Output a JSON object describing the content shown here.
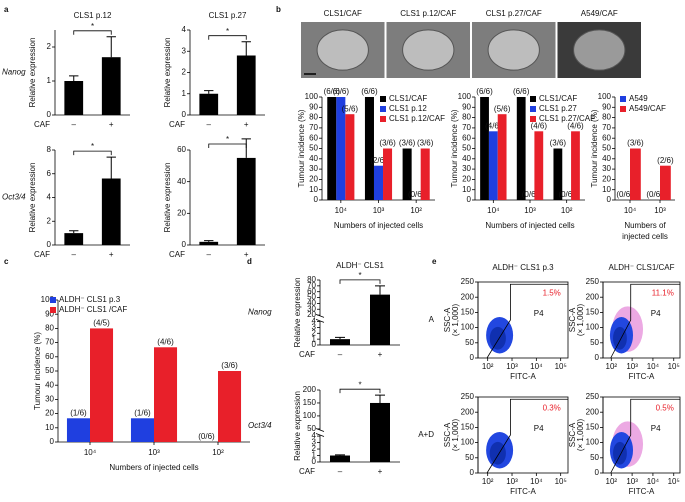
{
  "chart_data": [
    {
      "type": "bar",
      "panel": "a",
      "title": "CLS1 p.12",
      "row_label": "Nanog",
      "ylabel": "Relative expression",
      "x_prefix": "CAF",
      "categories": [
        "–",
        "+"
      ],
      "values": [
        1.0,
        1.7
      ],
      "errors": [
        0.15,
        0.6
      ],
      "color": "#000000",
      "ylim": [
        0,
        2.5
      ],
      "yticks": [
        0,
        1,
        2
      ],
      "significance": "*"
    },
    {
      "type": "bar",
      "title": "CLS1 p.27",
      "ylabel": "Relative expression",
      "x_prefix": "CAF",
      "categories": [
        "–",
        "+"
      ],
      "values": [
        1.0,
        2.8
      ],
      "errors": [
        0.15,
        0.65
      ],
      "color": "#000000",
      "ylim": [
        0,
        4
      ],
      "yticks": [
        0,
        1,
        2,
        3,
        4
      ],
      "significance": "*"
    },
    {
      "type": "bar",
      "row_label": "Oct3/4",
      "ylabel": "Relative expression",
      "x_prefix": "CAF",
      "categories": [
        "–",
        "+"
      ],
      "values": [
        1.0,
        5.6
      ],
      "errors": [
        0.2,
        1.8
      ],
      "color": "#000000",
      "ylim": [
        0,
        8
      ],
      "yticks": [
        0,
        2,
        4,
        6,
        8
      ],
      "significance": "*"
    },
    {
      "type": "bar",
      "ylabel": "Relative expression",
      "x_prefix": "CAF",
      "categories": [
        "–",
        "+"
      ],
      "values": [
        2.0,
        55
      ],
      "errors": [
        0.8,
        12
      ],
      "color": "#000000",
      "ylim": [
        0,
        60
      ],
      "yticks": [
        0,
        20,
        40,
        60
      ],
      "significance": "*"
    },
    {
      "type": "image",
      "panel": "b",
      "labels": [
        "CLS1/CAF",
        "CLS1 p.12/CAF",
        "CLS1 p.27/CAF",
        "A549/CAF"
      ]
    },
    {
      "type": "grouped_bar",
      "ylabel": "Tumour incidence (%)",
      "xlabel": [
        "Numbers of injected cells"
      ],
      "categories": [
        "10⁴",
        "10³",
        "10²"
      ],
      "legend": "upper right",
      "series": [
        {
          "name": "CLS1/CAF",
          "color": "#000000",
          "values": [
            100,
            100,
            50
          ],
          "value_labels": [
            "(6/6)",
            "(6/6)",
            "(3/6)"
          ]
        },
        {
          "name": "CLS1 p.12",
          "color": "#1f3fe0",
          "values": [
            100,
            33.3,
            0
          ],
          "value_labels": [
            "(6/6)",
            "(2/6)",
            "(0/6)"
          ]
        },
        {
          "name": "CLS1 p.12/CAF",
          "color": "#e8202a",
          "values": [
            83.3,
            50,
            50
          ],
          "value_labels": [
            "(5/6)",
            "(3/6)",
            "(3/6)"
          ]
        }
      ],
      "ylim": [
        0,
        100
      ],
      "yticks": [
        0,
        10,
        20,
        30,
        40,
        50,
        60,
        70,
        80,
        90,
        100
      ]
    },
    {
      "type": "grouped_bar",
      "ylabel": "Tumour incidence (%)",
      "xlabel": [
        "Numbers of injected cells"
      ],
      "categories": [
        "10⁴",
        "10³",
        "10²"
      ],
      "legend": "upper right",
      "series": [
        {
          "name": "CLS1/CAF",
          "color": "#000000",
          "values": [
            100,
            100,
            50
          ],
          "value_labels": [
            "(6/6)",
            "(6/6)",
            "(3/6)"
          ]
        },
        {
          "name": "CLS1 p.27",
          "color": "#1f3fe0",
          "values": [
            66.7,
            0,
            0
          ],
          "value_labels": [
            "(4/6)",
            "(0/6)",
            "(0/6)"
          ]
        },
        {
          "name": "CLS1 p.27/CAF",
          "color": "#e8202a",
          "values": [
            83.3,
            66.7,
            66.7
          ],
          "value_labels": [
            "(5/6)",
            "(4/6)",
            "(4/6)"
          ]
        }
      ],
      "ylim": [
        0,
        100
      ],
      "yticks": [
        0,
        10,
        20,
        30,
        40,
        50,
        60,
        70,
        80,
        90,
        100
      ]
    },
    {
      "type": "grouped_bar",
      "ylabel": "Tumour incidence (%)",
      "xlabel": [
        "Numbers of",
        "injected cells"
      ],
      "categories": [
        "10⁴",
        "10³"
      ],
      "legend": "upper right",
      "series": [
        {
          "name": "A549",
          "color": "#1f3fe0",
          "values": [
            0,
            0
          ],
          "value_labels": [
            "(0/6)",
            "(0/6)"
          ]
        },
        {
          "name": "A549/CAF",
          "color": "#e8202a",
          "values": [
            50,
            33.3
          ],
          "value_labels": [
            "(3/6)",
            "(2/6)"
          ]
        }
      ],
      "ylim": [
        0,
        100
      ],
      "yticks": [
        0,
        10,
        20,
        30,
        40,
        50,
        60,
        70,
        80,
        90,
        100
      ]
    },
    {
      "type": "grouped_bar",
      "panel": "c",
      "ylabel": "Tumour incidence (%)",
      "xlabel": [
        "Numbers of injected cells"
      ],
      "categories": [
        "10⁴",
        "10³",
        "10²"
      ],
      "legend": "upper left",
      "series": [
        {
          "name": "ALDH⁻ CLS1 p.3",
          "color": "#1f3fe0",
          "values": [
            16.7,
            16.7,
            0
          ],
          "value_labels": [
            "(1/6)",
            "(1/6)",
            "(0/6)"
          ]
        },
        {
          "name": "ALDH⁻ CLS1 /CAF",
          "color": "#e8202a",
          "values": [
            80,
            66.7,
            50
          ],
          "value_labels": [
            "(4/5)",
            "(4/6)",
            "(3/6)"
          ]
        }
      ],
      "ylim": [
        0,
        100
      ],
      "yticks": [
        0,
        10,
        20,
        30,
        40,
        50,
        60,
        70,
        80,
        90,
        100
      ]
    },
    {
      "type": "bar",
      "panel": "d",
      "title": "ALDH⁻ CLS1",
      "row_label": "Nanog",
      "ylabel": "Relative expression",
      "x_prefix": "CAF",
      "categories": [
        "–",
        "+"
      ],
      "values": [
        1.0,
        55
      ],
      "errors": [
        0.3,
        15
      ],
      "color": "#000000",
      "ylim": [
        0,
        80
      ],
      "ybreak": [
        4,
        20
      ],
      "yticks": [
        0,
        1,
        2,
        3,
        4,
        20,
        30,
        40,
        50,
        60,
        70,
        80
      ],
      "significance": "*"
    },
    {
      "type": "bar",
      "row_label": "Oct3/4",
      "ylabel": "Relative expression",
      "x_prefix": "CAF",
      "categories": [
        "–",
        "+"
      ],
      "values": [
        1.0,
        150
      ],
      "errors": [
        0.1,
        30
      ],
      "color": "#000000",
      "ylim": [
        0,
        200
      ],
      "ybreak": [
        4,
        50
      ],
      "yticks": [
        0,
        1,
        2,
        3,
        4,
        50,
        100,
        150,
        200
      ],
      "significance": "*"
    },
    {
      "type": "flow",
      "panel": "e",
      "title": "ALDH⁻ CLS1 p.3",
      "row_label": "A",
      "ylabel": "SSC-A",
      "yunit": "(× 1,000)",
      "xlabel": "FITC-A",
      "gate_label": "P4",
      "percent_label": "1.5%",
      "ylim": [
        0,
        250
      ],
      "yticks": [
        0,
        50,
        100,
        150,
        200,
        250
      ],
      "xlog": true,
      "xlim": [
        40,
        200000
      ],
      "xticks": [
        {
          "value": 100,
          "label": "10²"
        },
        {
          "value": 1000,
          "label": "10³"
        },
        {
          "value": 10000,
          "label": "10⁴"
        },
        {
          "value": 100000,
          "label": "10⁵"
        }
      ]
    },
    {
      "type": "flow",
      "title": "ALDH⁻ CLS1/CAF",
      "ylabel": "SSC-A",
      "yunit": "(× 1,000)",
      "xlabel": "FITC-A",
      "gate_label": "P4",
      "percent_label": "11.1%",
      "ylim": [
        0,
        250
      ],
      "yticks": [
        0,
        50,
        100,
        150,
        200,
        250
      ],
      "xlog": true,
      "xlim": [
        40,
        200000
      ],
      "xticks": [
        {
          "value": 100,
          "label": "10²"
        },
        {
          "value": 1000,
          "label": "10³"
        },
        {
          "value": 10000,
          "label": "10⁴"
        },
        {
          "value": 100000,
          "label": "10⁵"
        }
      ]
    },
    {
      "type": "flow",
      "row_label": "A+D",
      "ylabel": "SSC-A",
      "yunit": "(× 1,000)",
      "xlabel": "FITC-A",
      "gate_label": "P4",
      "percent_label": "0.3%",
      "ylim": [
        0,
        250
      ],
      "yticks": [
        0,
        50,
        100,
        150,
        200,
        250
      ],
      "xlog": true,
      "xlim": [
        40,
        200000
      ],
      "xticks": [
        {
          "value": 100,
          "label": "10²"
        },
        {
          "value": 1000,
          "label": "10³"
        },
        {
          "value": 10000,
          "label": "10⁴"
        },
        {
          "value": 100000,
          "label": "10⁵"
        }
      ]
    },
    {
      "type": "flow",
      "ylabel": "SSC-A",
      "yunit": "(× 1,000)",
      "xlabel": "FITC-A",
      "gate_label": "P4",
      "percent_label": "0.5%",
      "ylim": [
        0,
        250
      ],
      "yticks": [
        0,
        50,
        100,
        150,
        200,
        250
      ],
      "xlog": true,
      "xlim": [
        40,
        200000
      ],
      "xticks": [
        {
          "value": 100,
          "label": "10²"
        },
        {
          "value": 1000,
          "label": "10³"
        },
        {
          "value": 10000,
          "label": "10⁴"
        },
        {
          "value": 100000,
          "label": "10⁵"
        }
      ]
    }
  ]
}
